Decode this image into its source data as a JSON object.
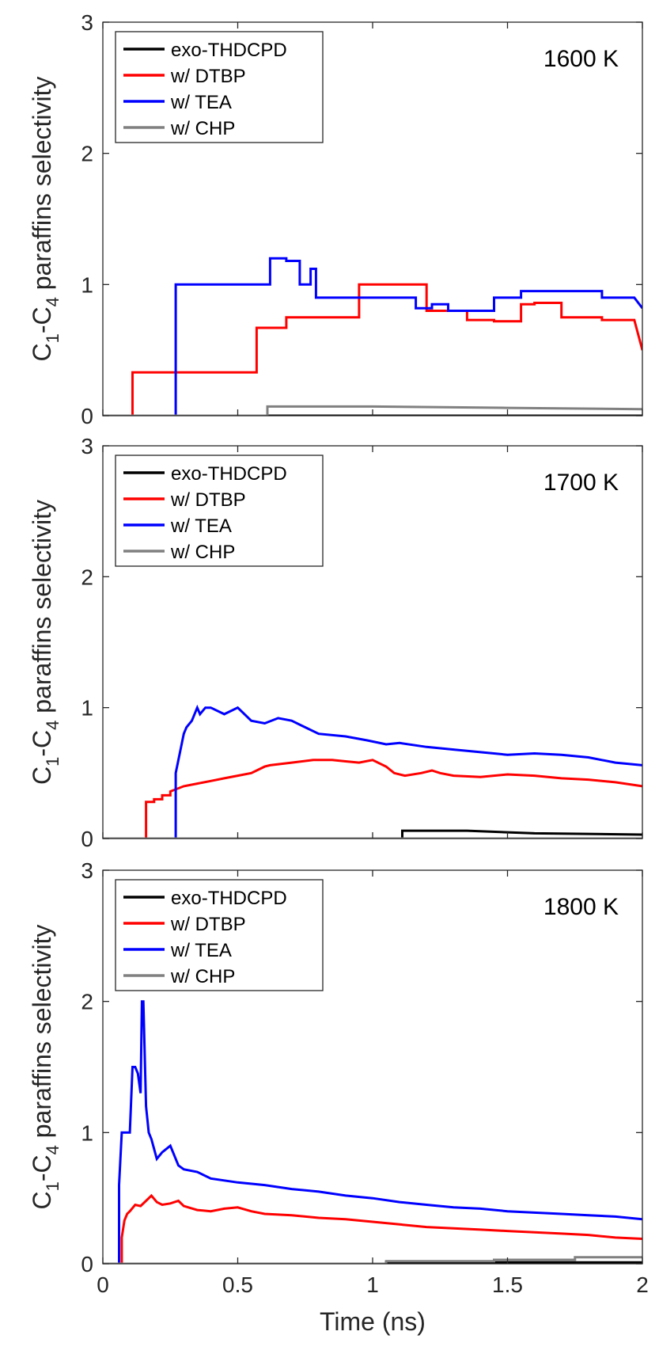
{
  "chart_data": [
    {
      "type": "line",
      "panel_label": "1600 K",
      "xlabel": "",
      "ylabel_parts": {
        "c1": "C",
        "s1": "1",
        "mid": "-C",
        "s2": "4",
        "rest": " paraffins selectivity"
      },
      "xlim": [
        0,
        2
      ],
      "ylim": [
        0,
        3
      ],
      "yticks": [
        0,
        1,
        2,
        3
      ],
      "xticks": [],
      "legend_position": "top-left",
      "series": [
        {
          "name": "exo-THDCPD",
          "color": "#000000",
          "x": [
            0,
            0.6,
            2
          ],
          "y": [
            0,
            0,
            0
          ]
        },
        {
          "name": "w/ DTBP",
          "color": "#ff0000",
          "x": [
            0,
            0.11,
            0.11,
            0.57,
            0.57,
            0.68,
            0.68,
            0.95,
            0.95,
            1.2,
            1.2,
            1.35,
            1.35,
            1.45,
            1.45,
            1.55,
            1.55,
            1.6,
            1.6,
            1.7,
            1.7,
            1.85,
            1.85,
            1.97,
            2.0
          ],
          "y": [
            0,
            0,
            0.33,
            0.33,
            0.67,
            0.67,
            0.75,
            0.75,
            1.0,
            1.0,
            0.8,
            0.8,
            0.73,
            0.73,
            0.72,
            0.72,
            0.85,
            0.85,
            0.86,
            0.86,
            0.75,
            0.75,
            0.73,
            0.73,
            0.5
          ]
        },
        {
          "name": "w/ TEA",
          "color": "#0000ff",
          "x": [
            0,
            0.27,
            0.27,
            0.62,
            0.62,
            0.68,
            0.68,
            0.73,
            0.73,
            0.77,
            0.77,
            0.79,
            0.79,
            0.8,
            0.8,
            1.16,
            1.16,
            1.22,
            1.22,
            1.28,
            1.28,
            1.45,
            1.45,
            1.55,
            1.55,
            1.85,
            1.85,
            1.97,
            2.0
          ],
          "y": [
            0,
            0,
            1.0,
            1.0,
            1.2,
            1.2,
            1.18,
            1.18,
            1.0,
            1.0,
            1.12,
            1.12,
            0.9,
            0.9,
            0.9,
            0.9,
            0.82,
            0.82,
            0.85,
            0.85,
            0.8,
            0.8,
            0.9,
            0.9,
            0.95,
            0.95,
            0.9,
            0.9,
            0.82
          ]
        },
        {
          "name": "w/ CHP",
          "color": "#808080",
          "x": [
            0,
            0.61,
            0.61,
            1.0,
            1.5,
            2.0
          ],
          "y": [
            0,
            0,
            0.07,
            0.07,
            0.06,
            0.05
          ]
        }
      ]
    },
    {
      "type": "line",
      "panel_label": "1700 K",
      "xlabel": "",
      "ylabel_parts": {
        "c1": "C",
        "s1": "1",
        "mid": "-C",
        "s2": "4",
        "rest": " paraffins selectivity"
      },
      "xlim": [
        0,
        2
      ],
      "ylim": [
        0,
        3
      ],
      "yticks": [
        0,
        1,
        2,
        3
      ],
      "xticks": [],
      "legend_position": "top-left",
      "series": [
        {
          "name": "exo-THDCPD",
          "color": "#000000",
          "x": [
            0,
            1.11,
            1.11,
            1.35,
            1.6,
            2.0
          ],
          "y": [
            0,
            0,
            0.06,
            0.06,
            0.04,
            0.03
          ]
        },
        {
          "name": "w/ DTBP",
          "color": "#ff0000",
          "x": [
            0,
            0.16,
            0.16,
            0.19,
            0.19,
            0.22,
            0.22,
            0.25,
            0.25,
            0.3,
            0.35,
            0.4,
            0.45,
            0.5,
            0.55,
            0.6,
            0.62,
            0.7,
            0.78,
            0.85,
            0.9,
            0.95,
            1.0,
            1.05,
            1.08,
            1.12,
            1.18,
            1.22,
            1.25,
            1.3,
            1.4,
            1.5,
            1.6,
            1.7,
            1.8,
            1.9,
            2.0
          ],
          "y": [
            0,
            0,
            0.28,
            0.28,
            0.3,
            0.3,
            0.33,
            0.33,
            0.36,
            0.4,
            0.42,
            0.44,
            0.46,
            0.48,
            0.5,
            0.55,
            0.56,
            0.58,
            0.6,
            0.6,
            0.59,
            0.58,
            0.6,
            0.55,
            0.5,
            0.48,
            0.5,
            0.52,
            0.5,
            0.48,
            0.47,
            0.49,
            0.48,
            0.46,
            0.45,
            0.43,
            0.4
          ]
        },
        {
          "name": "w/ TEA",
          "color": "#0000ff",
          "x": [
            0,
            0.27,
            0.27,
            0.29,
            0.3,
            0.31,
            0.33,
            0.35,
            0.36,
            0.38,
            0.4,
            0.45,
            0.5,
            0.55,
            0.6,
            0.65,
            0.7,
            0.75,
            0.8,
            0.9,
            0.98,
            1.05,
            1.1,
            1.2,
            1.3,
            1.4,
            1.5,
            1.6,
            1.7,
            1.8,
            1.9,
            2.0
          ],
          "y": [
            0,
            0,
            0.5,
            0.7,
            0.8,
            0.85,
            0.9,
            1.0,
            0.95,
            1.0,
            1.0,
            0.95,
            1.0,
            0.9,
            0.88,
            0.92,
            0.9,
            0.85,
            0.8,
            0.78,
            0.75,
            0.72,
            0.73,
            0.7,
            0.68,
            0.66,
            0.64,
            0.65,
            0.64,
            0.62,
            0.58,
            0.56
          ]
        },
        {
          "name": "w/ CHP",
          "color": "#808080",
          "x": [
            0,
            2.0
          ],
          "y": [
            0,
            0
          ]
        }
      ]
    },
    {
      "type": "line",
      "panel_label": "1800 K",
      "xlabel": "Time (ns)",
      "ylabel_parts": {
        "c1": "C",
        "s1": "1",
        "mid": "-C",
        "s2": "4",
        "rest": " paraffins selectivity"
      },
      "xlim": [
        0,
        2
      ],
      "ylim": [
        0,
        3
      ],
      "yticks": [
        0,
        1,
        2,
        3
      ],
      "xticks": [
        "0",
        "0.5",
        "1",
        "1.5",
        "2"
      ],
      "legend_position": "top-left",
      "series": [
        {
          "name": "exo-THDCPD",
          "color": "#000000",
          "x": [
            0,
            1.05,
            1.05,
            2.0
          ],
          "y": [
            0,
            0,
            0.01,
            0.01
          ]
        },
        {
          "name": "w/ DTBP",
          "color": "#ff0000",
          "x": [
            0,
            0.07,
            0.07,
            0.08,
            0.09,
            0.1,
            0.12,
            0.14,
            0.16,
            0.18,
            0.2,
            0.22,
            0.25,
            0.28,
            0.3,
            0.35,
            0.4,
            0.45,
            0.5,
            0.55,
            0.6,
            0.7,
            0.8,
            0.9,
            1.0,
            1.1,
            1.2,
            1.3,
            1.4,
            1.5,
            1.6,
            1.7,
            1.8,
            1.9,
            2.0
          ],
          "y": [
            0,
            0,
            0.2,
            0.33,
            0.38,
            0.4,
            0.45,
            0.44,
            0.48,
            0.52,
            0.47,
            0.45,
            0.46,
            0.48,
            0.44,
            0.41,
            0.4,
            0.42,
            0.43,
            0.4,
            0.38,
            0.37,
            0.35,
            0.34,
            0.32,
            0.3,
            0.28,
            0.27,
            0.26,
            0.25,
            0.24,
            0.23,
            0.22,
            0.2,
            0.19
          ]
        },
        {
          "name": "w/ TEA",
          "color": "#0000ff",
          "x": [
            0,
            0.06,
            0.06,
            0.07,
            0.08,
            0.1,
            0.11,
            0.12,
            0.13,
            0.14,
            0.145,
            0.15,
            0.155,
            0.16,
            0.17,
            0.18,
            0.2,
            0.22,
            0.25,
            0.28,
            0.3,
            0.35,
            0.4,
            0.5,
            0.6,
            0.7,
            0.8,
            0.9,
            1.0,
            1.1,
            1.2,
            1.3,
            1.4,
            1.5,
            1.6,
            1.7,
            1.8,
            1.9,
            2.0
          ],
          "y": [
            0,
            0,
            0.6,
            1.0,
            1.0,
            1.0,
            1.5,
            1.5,
            1.45,
            1.3,
            2.0,
            2.0,
            1.6,
            1.2,
            1.0,
            0.95,
            0.8,
            0.85,
            0.9,
            0.75,
            0.72,
            0.7,
            0.65,
            0.62,
            0.6,
            0.57,
            0.55,
            0.52,
            0.5,
            0.47,
            0.45,
            0.43,
            0.42,
            0.4,
            0.39,
            0.38,
            0.37,
            0.36,
            0.34
          ]
        },
        {
          "name": "w/ CHP",
          "color": "#808080",
          "x": [
            0,
            1.05,
            1.05,
            1.45,
            1.45,
            1.75,
            1.75,
            2.0
          ],
          "y": [
            0,
            0,
            0.02,
            0.02,
            0.03,
            0.03,
            0.05,
            0.05
          ]
        }
      ]
    }
  ]
}
